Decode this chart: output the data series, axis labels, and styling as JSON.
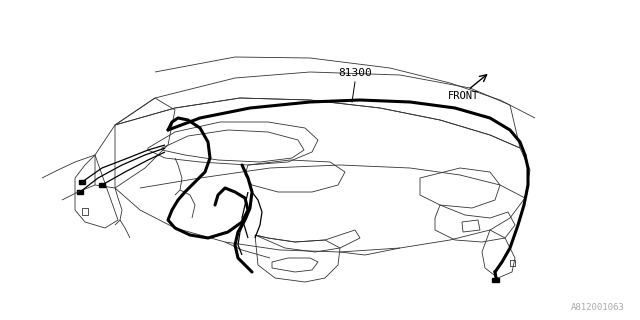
{
  "bg_color": "#ffffff",
  "line_color": "#000000",
  "thin_color": "#333333",
  "part_number": "81300",
  "direction_label": "FRONT",
  "diagram_code": "A812001063",
  "figsize": [
    6.4,
    3.2
  ],
  "dpi": 100,
  "lw_thin": 0.6,
  "lw_thick": 2.2,
  "lw_med": 0.9
}
